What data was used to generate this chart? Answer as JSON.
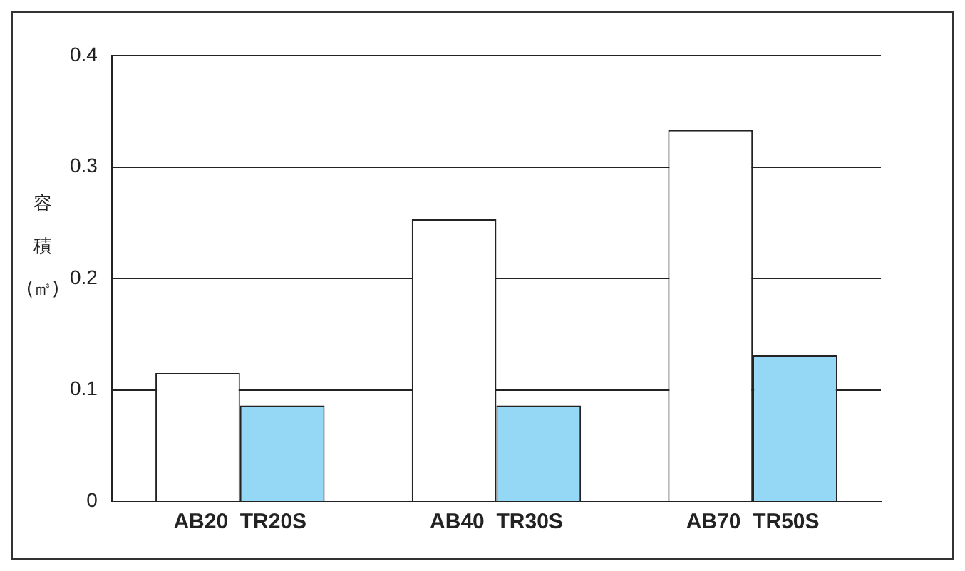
{
  "chart_data": {
    "type": "bar",
    "ylabel": "容積(㎥)",
    "categories": [
      "AB20  TR20S",
      "AB40  TR30S",
      "AB70  TR50S"
    ],
    "series": [
      {
        "color": "#ffffff",
        "values": [
          0.115,
          0.253,
          0.333
        ]
      },
      {
        "color": "#94d8f5",
        "values": [
          0.086,
          0.086,
          0.131
        ]
      }
    ],
    "ylim": [
      0,
      0.4
    ],
    "yticks": [
      0,
      0.1,
      0.2,
      0.3,
      0.4
    ],
    "grid": "y",
    "legend": false
  }
}
